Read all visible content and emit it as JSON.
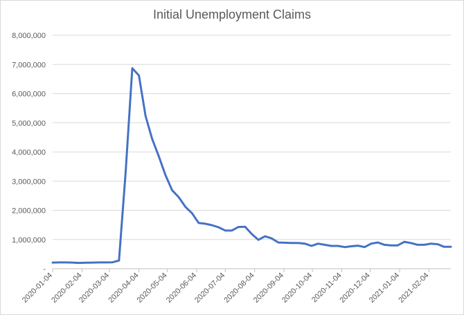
{
  "chart_data": {
    "type": "line",
    "title": "Initial Unemployment Claims",
    "xlabel": "",
    "ylabel": "",
    "ylim": [
      0,
      8000000
    ],
    "yticks": [
      0,
      1000000,
      2000000,
      3000000,
      4000000,
      5000000,
      6000000,
      7000000,
      8000000
    ],
    "ytick_labels": [
      "-",
      "1,000,000",
      "2,000,000",
      "3,000,000",
      "4,000,000",
      "5,000,000",
      "6,000,000",
      "7,000,000",
      "8,000,000"
    ],
    "xlim": [
      "2020-01-04",
      "2021-02-27"
    ],
    "xtick_labels": [
      "2020-01-04",
      "2020-02-04",
      "2020-03-04",
      "2020-04-04",
      "2020-05-04",
      "2020-06-04",
      "2020-07-04",
      "2020-08-04",
      "2020-09-04",
      "2020-10-04",
      "2020-11-04",
      "2020-12-04",
      "2021-01-04",
      "2021-02-04"
    ],
    "grid": true,
    "legend": "none",
    "color": "#4472c4",
    "series": [
      {
        "x": [
          "2020-01-04",
          "2020-01-11",
          "2020-01-18",
          "2020-01-25",
          "2020-02-01",
          "2020-02-08",
          "2020-02-15",
          "2020-02-22",
          "2020-02-29",
          "2020-03-07",
          "2020-03-14",
          "2020-03-21",
          "2020-03-28",
          "2020-04-04",
          "2020-04-11",
          "2020-04-18",
          "2020-04-25",
          "2020-05-02",
          "2020-05-09",
          "2020-05-16",
          "2020-05-23",
          "2020-05-30",
          "2020-06-06",
          "2020-06-13",
          "2020-06-20",
          "2020-06-27",
          "2020-07-04",
          "2020-07-11",
          "2020-07-18",
          "2020-07-25",
          "2020-08-01",
          "2020-08-08",
          "2020-08-15",
          "2020-08-22",
          "2020-08-29",
          "2020-09-05",
          "2020-09-12",
          "2020-09-19",
          "2020-09-26",
          "2020-10-03",
          "2020-10-10",
          "2020-10-17",
          "2020-10-24",
          "2020-10-31",
          "2020-11-07",
          "2020-11-14",
          "2020-11-21",
          "2020-11-28",
          "2020-12-05",
          "2020-12-12",
          "2020-12-19",
          "2020-12-26",
          "2021-01-02",
          "2021-01-09",
          "2021-01-16",
          "2021-01-23",
          "2021-01-30",
          "2021-02-06",
          "2021-02-13",
          "2021-02-20",
          "2021-02-27"
        ],
        "values": [
          210000,
          215000,
          215000,
          210000,
          200000,
          205000,
          210000,
          215000,
          215000,
          220000,
          280000,
          3300000,
          6870000,
          6620000,
          5230000,
          4440000,
          3850000,
          3210000,
          2690000,
          2450000,
          2120000,
          1900000,
          1570000,
          1540000,
          1490000,
          1420000,
          1310000,
          1310000,
          1430000,
          1440000,
          1190000,
          990000,
          1110000,
          1040000,
          900000,
          890000,
          880000,
          880000,
          860000,
          780000,
          860000,
          820000,
          780000,
          780000,
          740000,
          770000,
          790000,
          740000,
          860000,
          900000,
          820000,
          800000,
          800000,
          920000,
          880000,
          820000,
          820000,
          860000,
          840000,
          750000,
          750000
        ]
      }
    ]
  }
}
